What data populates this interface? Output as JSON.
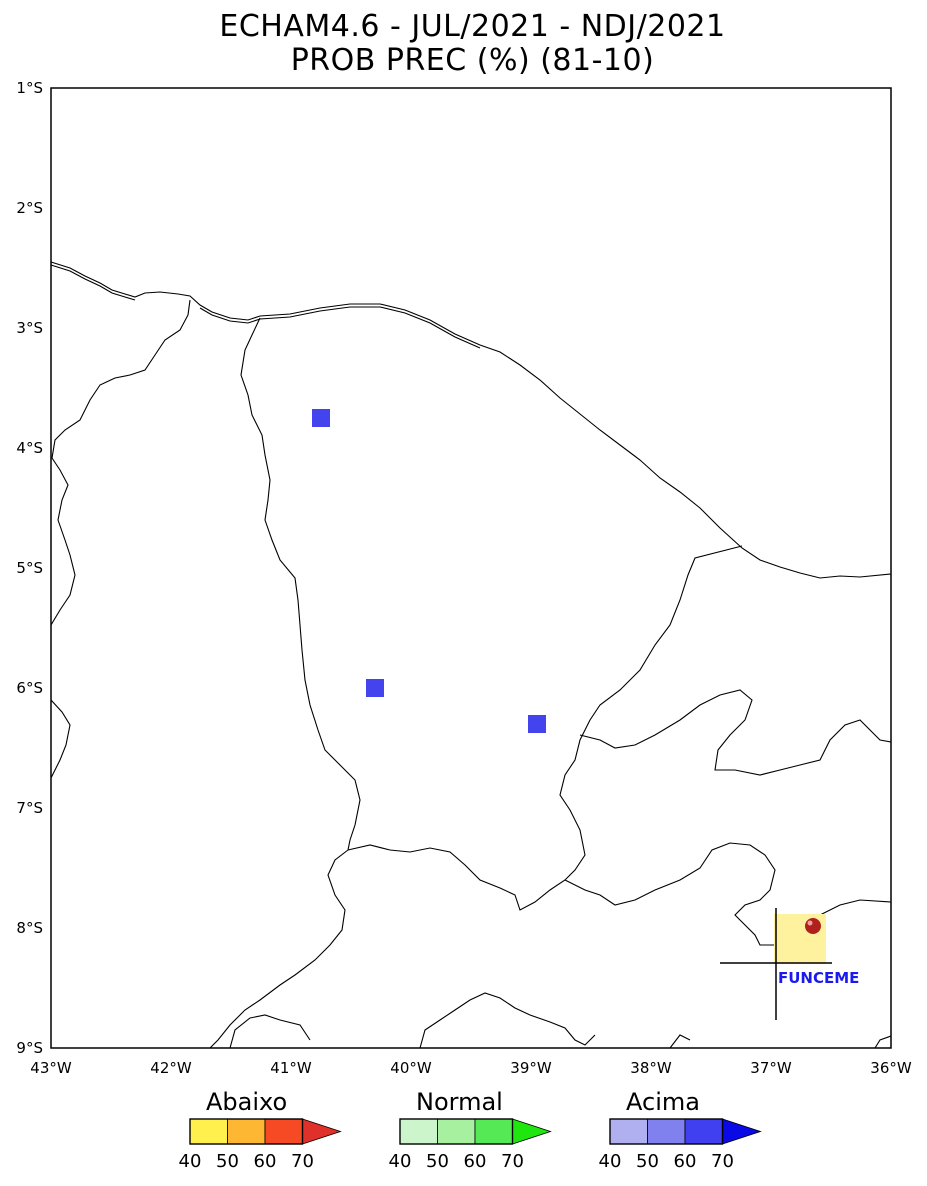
{
  "header": {
    "title_line1": "ECHAM4.6 - JUL/2021 - NDJ/2021",
    "title_line2": "PROB PREC (%) (81-10)"
  },
  "map": {
    "lat_labels": [
      "1°S",
      "2°S",
      "3°S",
      "4°S",
      "5°S",
      "6°S",
      "7°S",
      "8°S",
      "9°S"
    ],
    "lon_labels": [
      "43°W",
      "42°W",
      "41°W",
      "40°W",
      "39°W",
      "38°W",
      "37°W",
      "36°W"
    ],
    "lon_range": [
      -43,
      -36
    ],
    "lat_range": [
      -9,
      -1
    ],
    "cells": [
      {
        "lon": -40.75,
        "lat": -3.75,
        "category": "Acima",
        "probability": 60
      },
      {
        "lon": -40.3,
        "lat": -6.0,
        "category": "Acima",
        "probability": 60
      },
      {
        "lon": -38.95,
        "lat": -6.3,
        "category": "Acima",
        "probability": 60
      }
    ],
    "logo_text": "FUNCEME"
  },
  "legend": [
    {
      "title": "Abaixo",
      "colors": [
        "#fff04d",
        "#fdb733",
        "#f54a24",
        "#e0302a"
      ],
      "ticks": [
        "40",
        "50",
        "60",
        "70"
      ]
    },
    {
      "title": "Normal",
      "colors": [
        "#ccf5cc",
        "#a6f0a0",
        "#55ea55",
        "#1ee60e"
      ],
      "ticks": [
        "40",
        "50",
        "60",
        "70"
      ]
    },
    {
      "title": "Acima",
      "colors": [
        "#b0b0f0",
        "#8080ee",
        "#4040f0",
        "#0a0ae6"
      ],
      "ticks": [
        "40",
        "50",
        "60",
        "70"
      ]
    }
  ],
  "colors": {
    "acima_60": "#4444ee",
    "logo_box": "#fff29e"
  }
}
